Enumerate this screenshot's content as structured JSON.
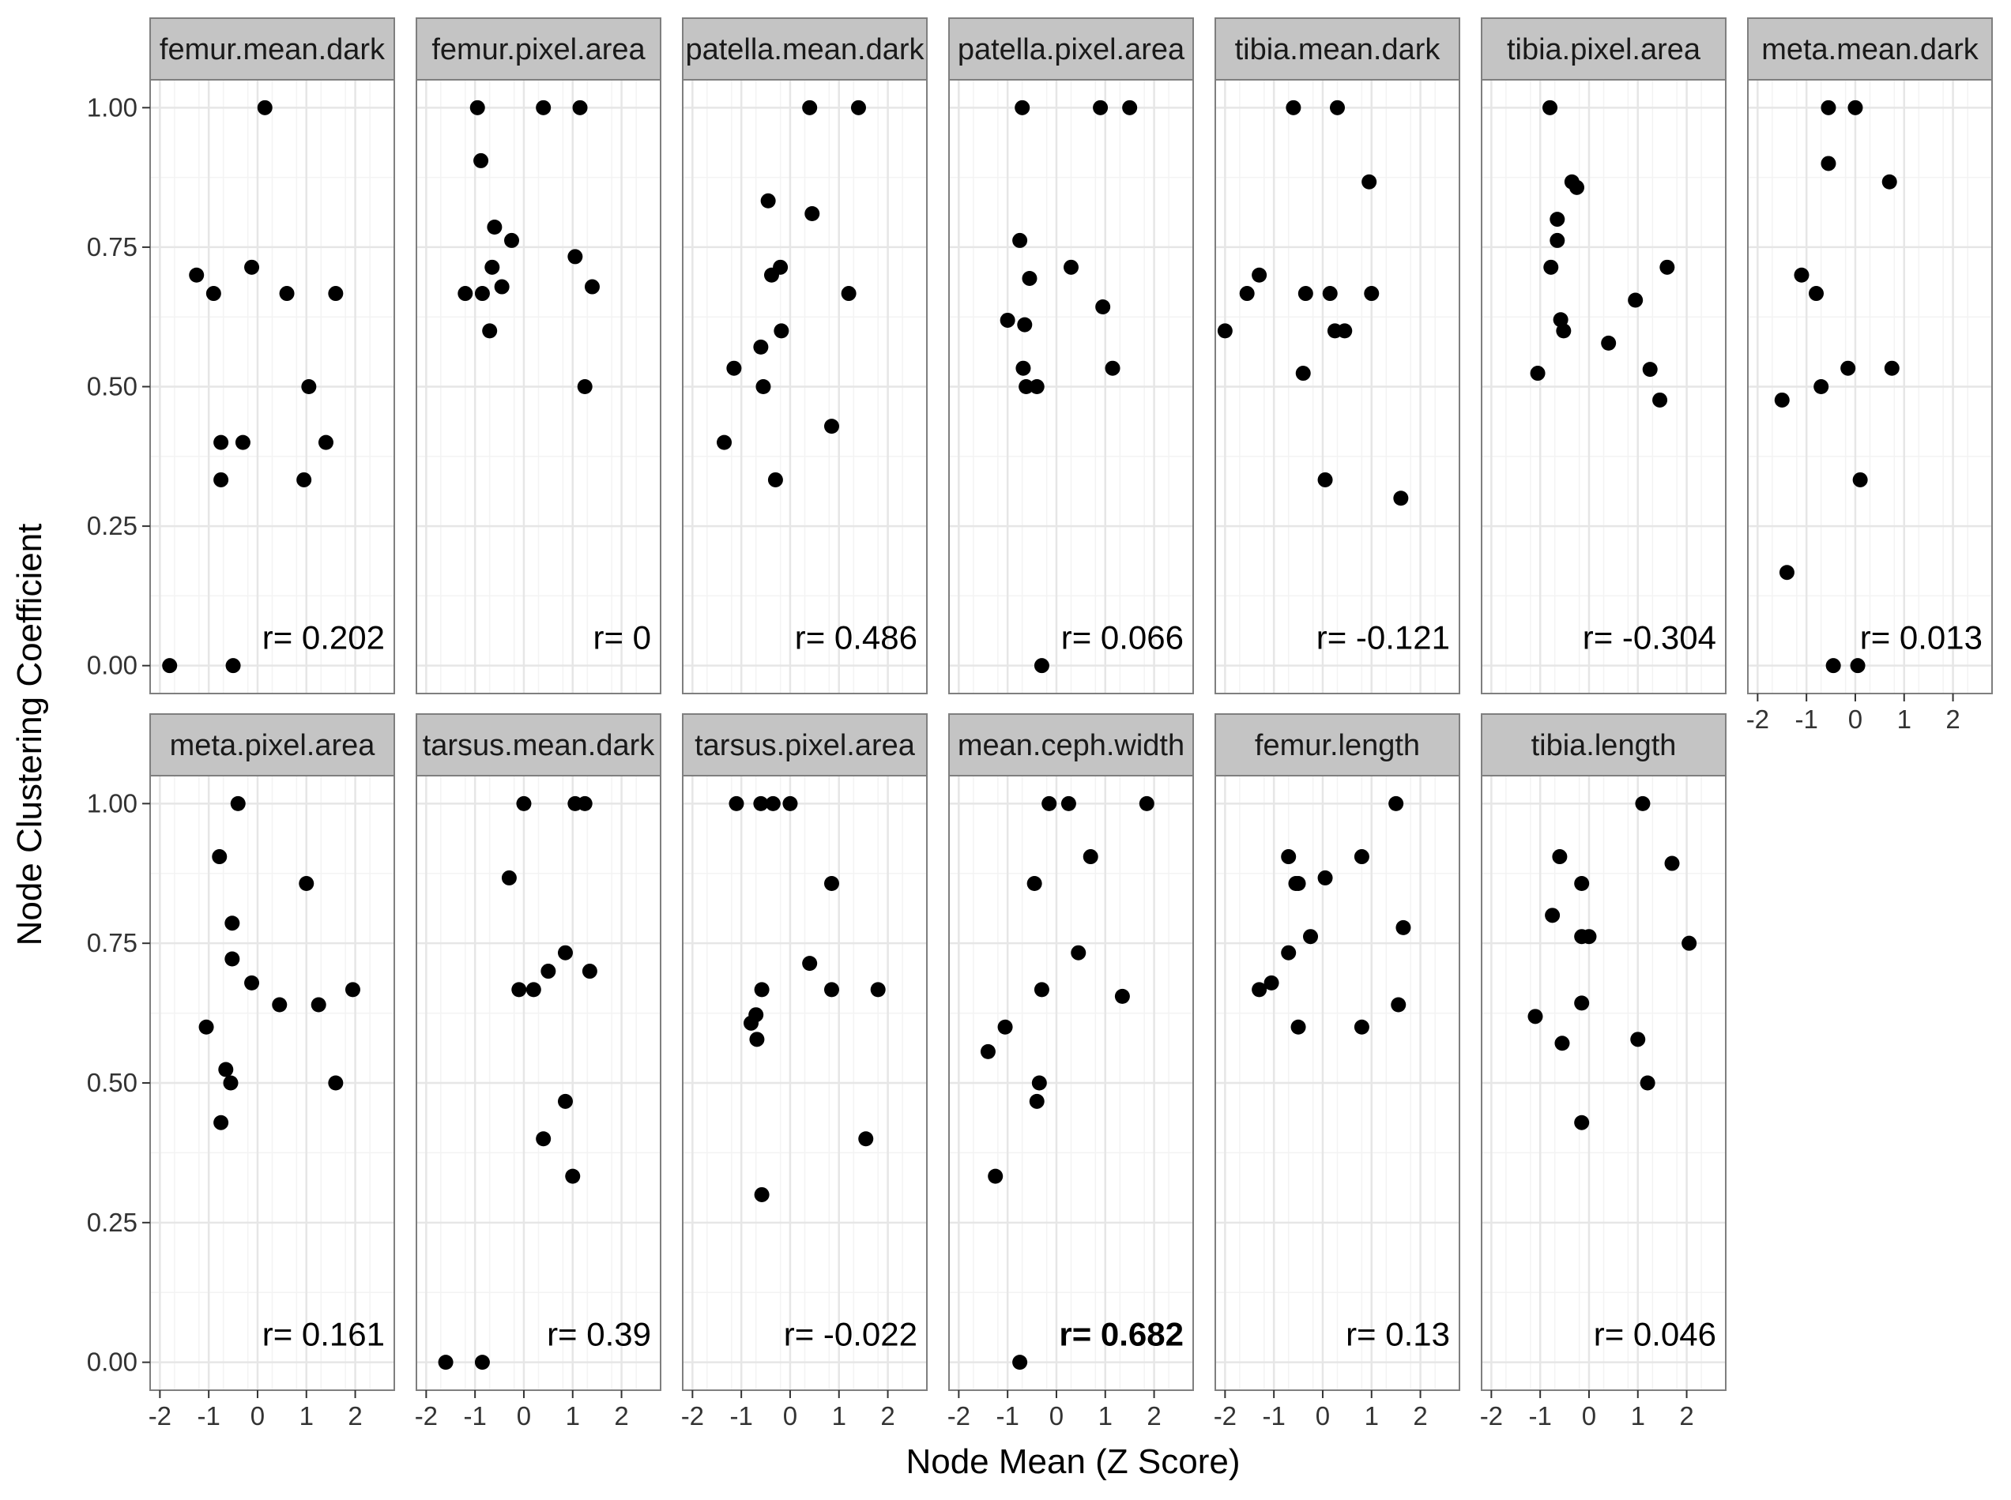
{
  "chart_data": {
    "type": "scatter",
    "xlabel": "Node Mean (Z Score)",
    "ylabel": "Node Clustering Coefficient",
    "xlim": [
      -2.2,
      2.8
    ],
    "ylim": [
      -0.05,
      1.05
    ],
    "x_ticks": [
      -2,
      -1,
      0,
      1,
      2
    ],
    "x_tick_labels": [
      "-2",
      "-1",
      "0",
      "1",
      "2"
    ],
    "y_ticks": [
      0,
      0.25,
      0.5,
      0.75,
      1.0
    ],
    "y_tick_labels": [
      "0.00",
      "0.25",
      "0.50",
      "0.75",
      "1.00"
    ],
    "grid": true,
    "facet_layout": "wrap, 2 rows x 7 columns, shared axes",
    "colors": {
      "point": "#000000",
      "strip": "#c4c4c4",
      "panel_border": "#7f7f7f",
      "grid_major": "#e6e6e6",
      "grid_minor": "#f3f3f3"
    },
    "panels": [
      {
        "title": "femur.mean.dark",
        "r_label": "r= 0.202",
        "r_bold": false,
        "points": [
          [
            -1.8,
            0.0
          ],
          [
            -1.25,
            0.7
          ],
          [
            -0.9,
            0.667
          ],
          [
            -0.75,
            0.4
          ],
          [
            -0.75,
            0.333
          ],
          [
            -0.5,
            0.0
          ],
          [
            -0.3,
            0.4
          ],
          [
            -0.12,
            0.714
          ],
          [
            0.15,
            1.0
          ],
          [
            0.6,
            0.667
          ],
          [
            0.95,
            0.333
          ],
          [
            1.05,
            0.5
          ],
          [
            1.4,
            0.4
          ],
          [
            1.6,
            0.667
          ]
        ]
      },
      {
        "title": "femur.pixel.area",
        "r_label": "r= 0",
        "r_bold": false,
        "points": [
          [
            -1.2,
            0.667
          ],
          [
            -0.95,
            1.0
          ],
          [
            -0.88,
            0.905
          ],
          [
            -0.85,
            0.667
          ],
          [
            -0.7,
            0.6
          ],
          [
            -0.65,
            0.714
          ],
          [
            -0.6,
            0.786
          ],
          [
            -0.45,
            0.679
          ],
          [
            -0.25,
            0.762
          ],
          [
            0.4,
            1.0
          ],
          [
            1.05,
            0.733
          ],
          [
            1.15,
            1.0
          ],
          [
            1.25,
            0.5
          ],
          [
            1.4,
            0.679
          ]
        ]
      },
      {
        "title": "patella.mean.dark",
        "r_label": "r= 0.486",
        "r_bold": false,
        "points": [
          [
            -1.35,
            0.4
          ],
          [
            -1.15,
            0.533
          ],
          [
            -0.6,
            0.571
          ],
          [
            -0.55,
            0.5
          ],
          [
            -0.45,
            0.833
          ],
          [
            -0.38,
            0.7
          ],
          [
            -0.3,
            0.333
          ],
          [
            -0.2,
            0.714
          ],
          [
            -0.18,
            0.6
          ],
          [
            0.4,
            1.0
          ],
          [
            0.45,
            0.81
          ],
          [
            0.85,
            0.429
          ],
          [
            1.2,
            0.667
          ],
          [
            1.4,
            1.0
          ]
        ]
      },
      {
        "title": "patella.pixel.area",
        "r_label": "r= 0.066",
        "r_bold": false,
        "points": [
          [
            -1.0,
            0.619
          ],
          [
            -0.75,
            0.762
          ],
          [
            -0.7,
            1.0
          ],
          [
            -0.68,
            0.533
          ],
          [
            -0.65,
            0.611
          ],
          [
            -0.62,
            0.5
          ],
          [
            -0.55,
            0.694
          ],
          [
            -0.4,
            0.5
          ],
          [
            -0.3,
            0.0
          ],
          [
            0.3,
            0.714
          ],
          [
            0.95,
            0.643
          ],
          [
            0.9,
            1.0
          ],
          [
            1.15,
            0.533
          ],
          [
            1.5,
            1.0
          ]
        ]
      },
      {
        "title": "tibia.mean.dark",
        "r_label": "r= -0.121",
        "r_bold": false,
        "points": [
          [
            -2.0,
            0.6
          ],
          [
            -1.55,
            0.667
          ],
          [
            -1.3,
            0.7
          ],
          [
            -0.6,
            1.0
          ],
          [
            -0.4,
            0.524
          ],
          [
            -0.35,
            0.667
          ],
          [
            0.05,
            0.333
          ],
          [
            0.15,
            0.667
          ],
          [
            0.25,
            0.6
          ],
          [
            0.3,
            1.0
          ],
          [
            0.45,
            0.6
          ],
          [
            0.95,
            0.867
          ],
          [
            1.0,
            0.667
          ],
          [
            1.6,
            0.3
          ]
        ]
      },
      {
        "title": "tibia.pixel.area",
        "r_label": "r= -0.304",
        "r_bold": false,
        "points": [
          [
            -1.05,
            0.524
          ],
          [
            -0.8,
            1.0
          ],
          [
            -0.78,
            0.714
          ],
          [
            -0.65,
            0.8
          ],
          [
            -0.65,
            0.762
          ],
          [
            -0.58,
            0.62
          ],
          [
            -0.52,
            0.6
          ],
          [
            -0.35,
            0.867
          ],
          [
            -0.25,
            0.857
          ],
          [
            0.4,
            0.578
          ],
          [
            0.95,
            0.655
          ],
          [
            1.25,
            0.531
          ],
          [
            1.45,
            0.476
          ],
          [
            1.6,
            0.714
          ]
        ]
      },
      {
        "title": "meta.mean.dark",
        "r_label": "r= 0.013",
        "r_bold": false,
        "points": [
          [
            -1.5,
            0.476
          ],
          [
            -1.4,
            0.167
          ],
          [
            -1.1,
            0.7
          ],
          [
            -0.8,
            0.667
          ],
          [
            -0.7,
            0.5
          ],
          [
            -0.55,
            1.0
          ],
          [
            -0.55,
            0.9
          ],
          [
            -0.15,
            0.533
          ],
          [
            -0.45,
            0.0
          ],
          [
            0.0,
            1.0
          ],
          [
            0.05,
            0.0
          ],
          [
            0.1,
            0.333
          ],
          [
            0.7,
            0.867
          ],
          [
            0.75,
            0.533
          ]
        ]
      },
      {
        "title": "meta.pixel.area",
        "r_label": "r= 0.161",
        "r_bold": false,
        "points": [
          [
            -1.05,
            0.6
          ],
          [
            -0.78,
            0.905
          ],
          [
            -0.75,
            0.429
          ],
          [
            -0.65,
            0.524
          ],
          [
            -0.55,
            0.5
          ],
          [
            -0.52,
            0.786
          ],
          [
            -0.52,
            0.722
          ],
          [
            -0.4,
            1.0
          ],
          [
            -0.12,
            0.679
          ],
          [
            0.45,
            0.64
          ],
          [
            1.0,
            0.857
          ],
          [
            1.25,
            0.64
          ],
          [
            1.6,
            0.5
          ],
          [
            1.95,
            0.667
          ]
        ]
      },
      {
        "title": "tarsus.mean.dark",
        "r_label": "r= 0.39",
        "r_bold": false,
        "points": [
          [
            -1.6,
            0.0
          ],
          [
            -0.85,
            0.0
          ],
          [
            -0.3,
            0.867
          ],
          [
            -0.1,
            0.667
          ],
          [
            0.0,
            1.0
          ],
          [
            0.2,
            0.667
          ],
          [
            0.4,
            0.4
          ],
          [
            0.5,
            0.7
          ],
          [
            0.85,
            0.733
          ],
          [
            0.85,
            0.467
          ],
          [
            1.0,
            0.333
          ],
          [
            1.05,
            1.0
          ],
          [
            1.25,
            1.0
          ],
          [
            1.35,
            0.7
          ]
        ]
      },
      {
        "title": "tarsus.pixel.area",
        "r_label": "r= -0.022",
        "r_bold": false,
        "points": [
          [
            -1.1,
            1.0
          ],
          [
            -0.8,
            0.607
          ],
          [
            -0.7,
            0.622
          ],
          [
            -0.68,
            0.578
          ],
          [
            -0.58,
            0.667
          ],
          [
            -0.58,
            0.3
          ],
          [
            -0.6,
            1.0
          ],
          [
            -0.35,
            1.0
          ],
          [
            0.0,
            1.0
          ],
          [
            0.4,
            0.714
          ],
          [
            0.85,
            0.857
          ],
          [
            0.85,
            0.667
          ],
          [
            1.55,
            0.4
          ],
          [
            1.8,
            0.667
          ]
        ]
      },
      {
        "title": "mean.ceph.width",
        "r_label": "r= 0.682",
        "r_bold": true,
        "points": [
          [
            -1.4,
            0.556
          ],
          [
            -1.25,
            0.333
          ],
          [
            -1.05,
            0.6
          ],
          [
            -0.75,
            0.0
          ],
          [
            -0.45,
            0.857
          ],
          [
            -0.4,
            0.467
          ],
          [
            -0.35,
            0.5
          ],
          [
            -0.3,
            0.667
          ],
          [
            -0.15,
            1.0
          ],
          [
            0.25,
            1.0
          ],
          [
            0.45,
            0.733
          ],
          [
            0.7,
            0.905
          ],
          [
            1.35,
            0.655
          ],
          [
            1.85,
            1.0
          ]
        ]
      },
      {
        "title": "femur.length",
        "r_label": "r= 0.13",
        "r_bold": false,
        "points": [
          [
            -1.3,
            0.667
          ],
          [
            -1.05,
            0.679
          ],
          [
            -0.7,
            0.905
          ],
          [
            -0.7,
            0.733
          ],
          [
            -0.55,
            0.857
          ],
          [
            -0.5,
            0.857
          ],
          [
            -0.5,
            0.6
          ],
          [
            -0.25,
            0.762
          ],
          [
            0.05,
            0.867
          ],
          [
            0.8,
            0.905
          ],
          [
            0.8,
            0.6
          ],
          [
            1.5,
            1.0
          ],
          [
            1.55,
            0.64
          ],
          [
            1.65,
            0.778
          ]
        ]
      },
      {
        "title": "tibia.length",
        "r_label": "r= 0.046",
        "r_bold": false,
        "points": [
          [
            -1.1,
            0.619
          ],
          [
            -0.75,
            0.8
          ],
          [
            -0.6,
            0.905
          ],
          [
            -0.55,
            0.571
          ],
          [
            -0.15,
            0.857
          ],
          [
            -0.15,
            0.762
          ],
          [
            -0.15,
            0.643
          ],
          [
            -0.15,
            0.429
          ],
          [
            0.0,
            0.762
          ],
          [
            1.0,
            0.578
          ],
          [
            1.1,
            1.0
          ],
          [
            1.2,
            0.5
          ],
          [
            1.7,
            0.893
          ],
          [
            2.05,
            0.75
          ]
        ]
      }
    ]
  }
}
